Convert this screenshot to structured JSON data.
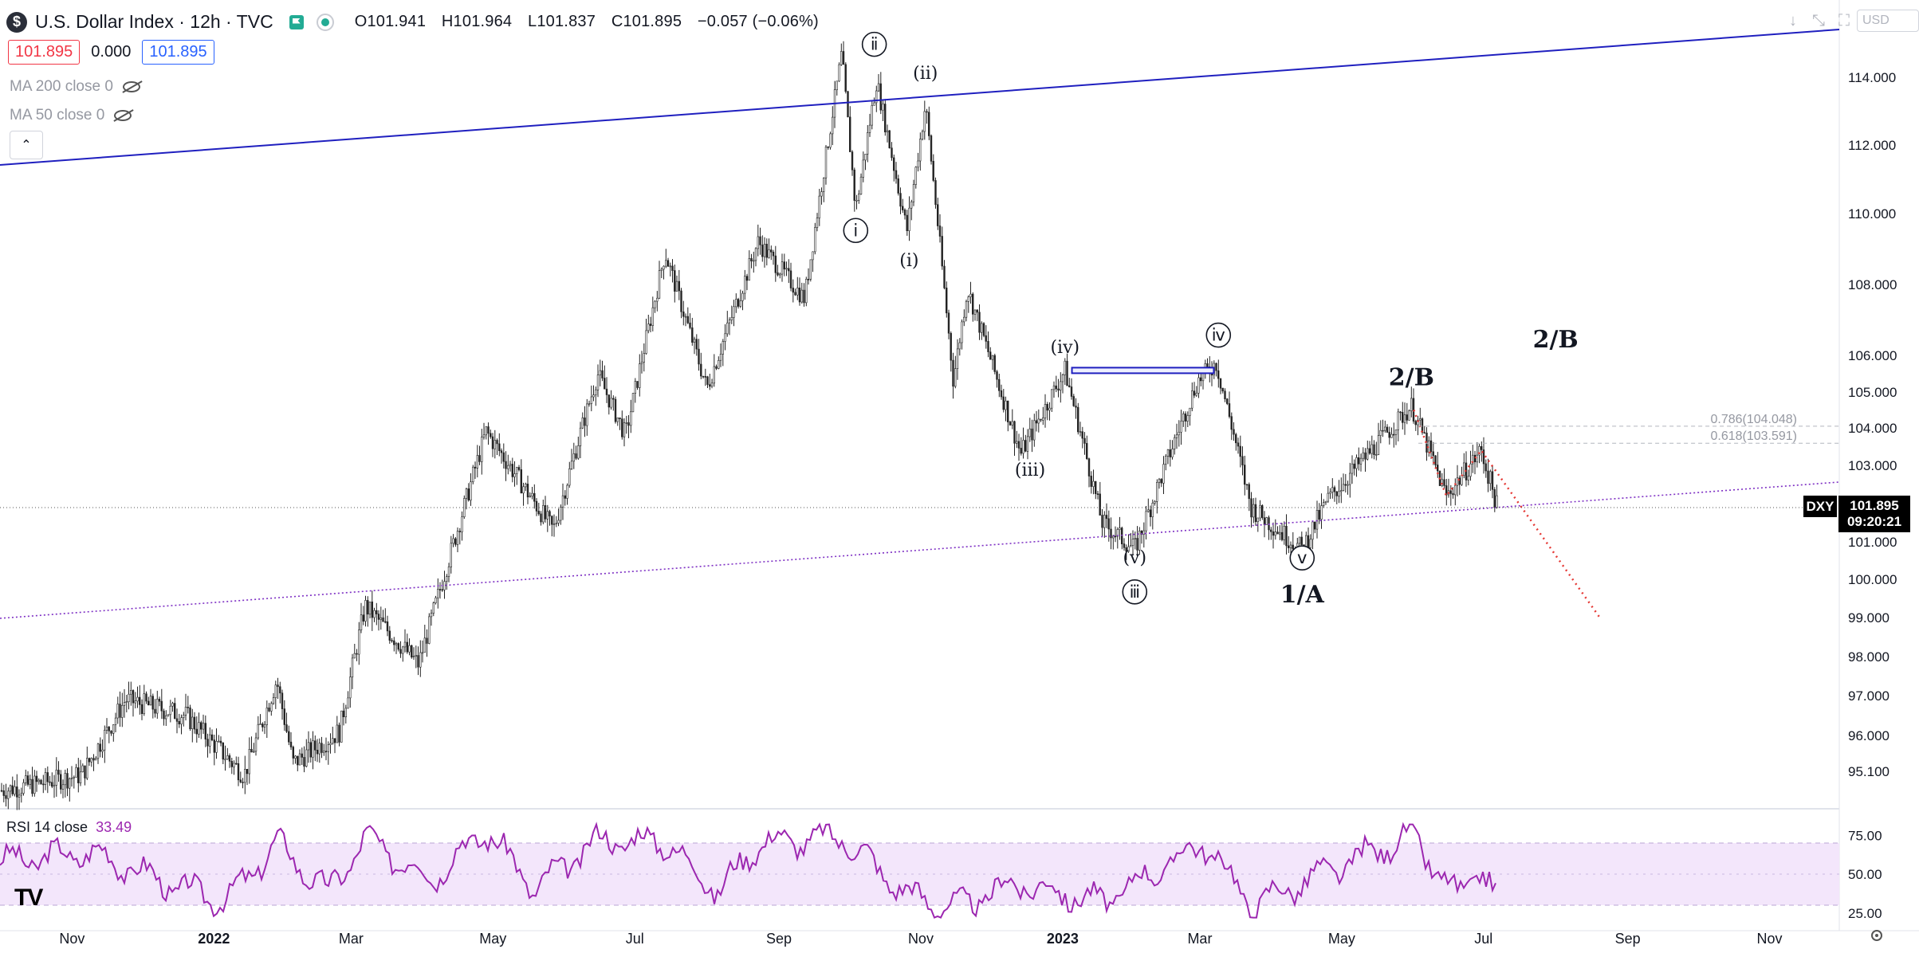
{
  "header": {
    "logo_letter": "$",
    "title": "U.S. Dollar Index · 12h · TVC",
    "ohlc": {
      "open": "O101.941",
      "high": "H101.964",
      "low": "L101.837",
      "close": "C101.895",
      "change": "−0.057 (−0.06%)"
    },
    "bid": "101.895",
    "spread": "0.000",
    "ask": "101.895",
    "ma200": "MA 200 close 0",
    "ma50": "MA 50 close 0",
    "collapse": "⌃",
    "currency": "USD",
    "tool_icons": [
      "↓",
      "⤡",
      "⛶"
    ]
  },
  "price_marker": {
    "symbol": "DXY",
    "price": "101.895",
    "countdown": "09:20:21"
  },
  "rsi": {
    "label": "RSI 14 close",
    "value": "33.49"
  },
  "colors": {
    "candles": "#222222",
    "trendline_blue": "#1f1fbf",
    "support_purple": "#7e30c4",
    "projection_red": "#e53935",
    "rsi_line": "#9c27b0",
    "rsi_band": "#f3e6fb"
  },
  "chart_data": {
    "type": "candlestick",
    "title": "U.S. Dollar Index · 12h · TVC",
    "x_ticks": [
      "Nov",
      "2022",
      "Mar",
      "May",
      "Jul",
      "Sep",
      "Nov",
      "2023",
      "Mar",
      "May",
      "Jul",
      "Sep",
      "Nov"
    ],
    "y_ticks": [
      "114.000",
      "112.000",
      "110.000",
      "108.000",
      "106.000",
      "105.000",
      "104.000",
      "103.000",
      "101.000",
      "100.000",
      "99.000",
      "98.000",
      "97.000",
      "96.000",
      "95.100"
    ],
    "current_price": 101.895,
    "price_path": [
      {
        "date": "2021-10-02",
        "close": 94.6
      },
      {
        "date": "2021-11-05",
        "close": 95.0
      },
      {
        "date": "2021-11-24",
        "close": 96.9
      },
      {
        "date": "2021-12-20",
        "close": 96.5
      },
      {
        "date": "2022-01-14",
        "close": 95.0
      },
      {
        "date": "2022-01-28",
        "close": 97.4
      },
      {
        "date": "2022-02-04",
        "close": 95.3
      },
      {
        "date": "2022-02-24",
        "close": 96.1
      },
      {
        "date": "2022-03-07",
        "close": 99.3
      },
      {
        "date": "2022-03-30",
        "close": 97.8
      },
      {
        "date": "2022-04-28",
        "close": 103.9
      },
      {
        "date": "2022-05-27",
        "close": 101.3
      },
      {
        "date": "2022-06-15",
        "close": 105.5
      },
      {
        "date": "2022-06-27",
        "close": 103.8
      },
      {
        "date": "2022-07-14",
        "close": 108.9
      },
      {
        "date": "2022-08-01",
        "close": 105.1
      },
      {
        "date": "2022-08-23",
        "close": 109.2
      },
      {
        "date": "2022-09-12",
        "close": 107.6
      },
      {
        "date": "2022-09-28",
        "close": 114.7
      },
      {
        "date": "2022-10-04",
        "close": 110.1
      },
      {
        "date": "2022-10-13",
        "close": 113.9
      },
      {
        "date": "2022-10-26",
        "close": 109.5
      },
      {
        "date": "2022-11-03",
        "close": 113.2
      },
      {
        "date": "2022-11-15",
        "close": 105.3
      },
      {
        "date": "2022-11-21",
        "close": 107.9
      },
      {
        "date": "2022-12-14",
        "close": 103.3
      },
      {
        "date": "2023-01-02",
        "close": 105.6
      },
      {
        "date": "2023-01-18",
        "close": 101.5
      },
      {
        "date": "2023-02-01",
        "close": 100.8
      },
      {
        "date": "2023-02-28",
        "close": 105.3
      },
      {
        "date": "2023-03-08",
        "close": 105.8
      },
      {
        "date": "2023-03-23",
        "close": 101.9
      },
      {
        "date": "2023-04-14",
        "close": 100.8
      },
      {
        "date": "2023-04-25",
        "close": 102.1
      },
      {
        "date": "2023-05-31",
        "close": 104.6
      },
      {
        "date": "2023-06-15",
        "close": 102.2
      },
      {
        "date": "2023-06-30",
        "close": 103.4
      },
      {
        "date": "2023-07-07",
        "close": 101.9
      }
    ],
    "annotations": [
      {
        "text": "ⅰ",
        "circled": true,
        "date": "2022-10-04",
        "price": 109.5
      },
      {
        "text": "ⅱ",
        "circled": true,
        "date": "2022-10-12",
        "price": 114.95
      },
      {
        "text": "(ii)",
        "circled": false,
        "date": "2022-11-03",
        "price": 114.1
      },
      {
        "text": "(i)",
        "circled": false,
        "date": "2022-10-27",
        "price": 108.65
      },
      {
        "text": "(iv)",
        "circled": false,
        "date": "2023-01-02",
        "price": 106.2
      },
      {
        "text": "ⅳ",
        "circled": true,
        "date": "2023-03-09",
        "price": 106.55
      },
      {
        "text": "(iii)",
        "circled": false,
        "date": "2022-12-18",
        "price": 102.85
      },
      {
        "text": "(v)",
        "circled": false,
        "date": "2023-02-01",
        "price": 100.55
      },
      {
        "text": "ⅲ",
        "circled": true,
        "date": "2023-02-01",
        "price": 99.65
      },
      {
        "text": "ⅴ",
        "circled": true,
        "date": "2023-04-14",
        "price": 100.55
      },
      {
        "text": "1/A",
        "circled": false,
        "date": "2023-04-14",
        "price": 99.6
      },
      {
        "text": "2/B",
        "circled": false,
        "date": "2023-05-31",
        "price": 105.4
      },
      {
        "text": "2/B",
        "circled": false,
        "date": "2023-08-01",
        "price": 106.45
      }
    ],
    "fib_levels": [
      {
        "label": "0.786(104.048)",
        "price": 104.048
      },
      {
        "label": "0.618(103.591)",
        "price": 103.591
      }
    ],
    "rsi_ticks": [
      "75.00",
      "50.00",
      "25.00"
    ],
    "rsi_band": [
      30,
      70
    ],
    "rsi_path": [
      {
        "date": "2021-10-02",
        "value": 58
      },
      {
        "date": "2021-11-09",
        "value": 64
      },
      {
        "date": "2021-12-17",
        "value": 41
      },
      {
        "date": "2022-01-07",
        "value": 33
      },
      {
        "date": "2022-01-28",
        "value": 70
      },
      {
        "date": "2022-02-19",
        "value": 38
      },
      {
        "date": "2022-03-07",
        "value": 73
      },
      {
        "date": "2022-04-04",
        "value": 47
      },
      {
        "date": "2022-04-28",
        "value": 78
      },
      {
        "date": "2022-05-19",
        "value": 40
      },
      {
        "date": "2022-06-15",
        "value": 72
      },
      {
        "date": "2022-07-14",
        "value": 71
      },
      {
        "date": "2022-08-06",
        "value": 38
      },
      {
        "date": "2022-08-23",
        "value": 70
      },
      {
        "date": "2022-09-28",
        "value": 74
      },
      {
        "date": "2022-10-26",
        "value": 37
      },
      {
        "date": "2022-11-15",
        "value": 28
      },
      {
        "date": "2022-12-11",
        "value": 44
      },
      {
        "date": "2023-01-18",
        "value": 32
      },
      {
        "date": "2023-03-03",
        "value": 70
      },
      {
        "date": "2023-03-23",
        "value": 30
      },
      {
        "date": "2023-05-31",
        "value": 75
      },
      {
        "date": "2023-06-20",
        "value": 34
      },
      {
        "date": "2023-06-30",
        "value": 56
      },
      {
        "date": "2023-07-07",
        "value": 33
      }
    ]
  }
}
